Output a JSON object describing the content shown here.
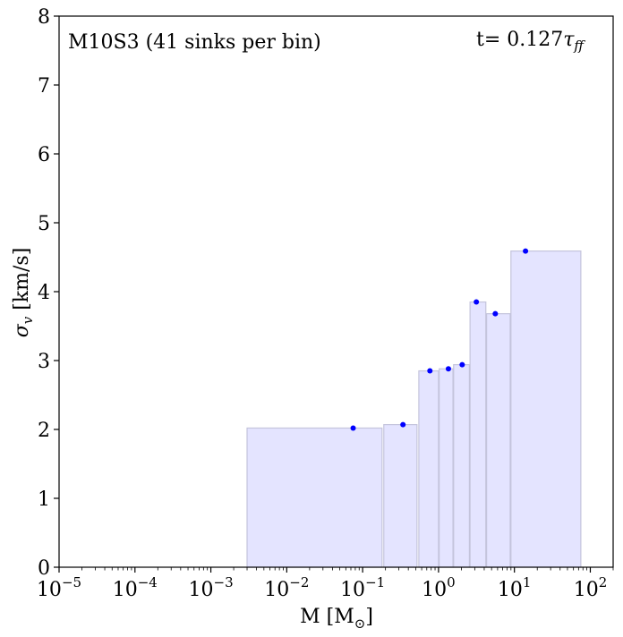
{
  "chart_data": {
    "type": "bar",
    "title": "",
    "xlabel": "M [M",
    "xlabel_sub": "⊙",
    "xlabel_close": "]",
    "ylabel": "σ",
    "ylabel_sub": "v",
    "ylabel_unit": " [km/s]",
    "xscale": "log",
    "xlim": [
      1e-05,
      200
    ],
    "ylim": [
      0,
      8
    ],
    "annotation_left": "M10S3 (41 sinks per bin)",
    "annotation_right": "t= 0.127",
    "annotation_right_tau": "τ",
    "annotation_right_sub": "ff",
    "x_ticks": [
      {
        "exp": -5,
        "base": "10",
        "label": "−5"
      },
      {
        "exp": -4,
        "base": "10",
        "label": "−4"
      },
      {
        "exp": -3,
        "base": "10",
        "label": "−3"
      },
      {
        "exp": -2,
        "base": "10",
        "label": "−2"
      },
      {
        "exp": -1,
        "base": "10",
        "label": "−1"
      },
      {
        "exp": 0,
        "base": "10",
        "label": "0"
      },
      {
        "exp": 1,
        "base": "10",
        "label": "1"
      },
      {
        "exp": 2,
        "base": "10",
        "label": "2"
      }
    ],
    "y_ticks": [
      "0",
      "1",
      "2",
      "3",
      "4",
      "5",
      "6",
      "7",
      "8"
    ],
    "bins": [
      {
        "x_low": 0.003,
        "x_high": 0.18,
        "value": 2.02
      },
      {
        "x_low": 0.19,
        "x_high": 0.52,
        "value": 2.07
      },
      {
        "x_low": 0.55,
        "x_high": 1.0,
        "value": 2.85
      },
      {
        "x_low": 1.02,
        "x_high": 1.55,
        "value": 2.88
      },
      {
        "x_low": 1.58,
        "x_high": 2.55,
        "value": 2.94
      },
      {
        "x_low": 2.6,
        "x_high": 4.2,
        "value": 3.85
      },
      {
        "x_low": 4.3,
        "x_high": 8.8,
        "value": 3.68
      },
      {
        "x_low": 9.0,
        "x_high": 75.0,
        "value": 4.59
      }
    ],
    "points": [
      {
        "x": 0.075,
        "y": 2.02
      },
      {
        "x": 0.34,
        "y": 2.07
      },
      {
        "x": 0.77,
        "y": 2.85
      },
      {
        "x": 1.35,
        "y": 2.88
      },
      {
        "x": 2.05,
        "y": 2.94
      },
      {
        "x": 3.15,
        "y": 3.85
      },
      {
        "x": 5.6,
        "y": 3.68
      },
      {
        "x": 14.0,
        "y": 4.59
      }
    ],
    "colors": {
      "bar_fill": "#e4e4ff",
      "bar_edge": "#c4c4dc",
      "point": "#0000ff",
      "axis": "#000000"
    }
  }
}
